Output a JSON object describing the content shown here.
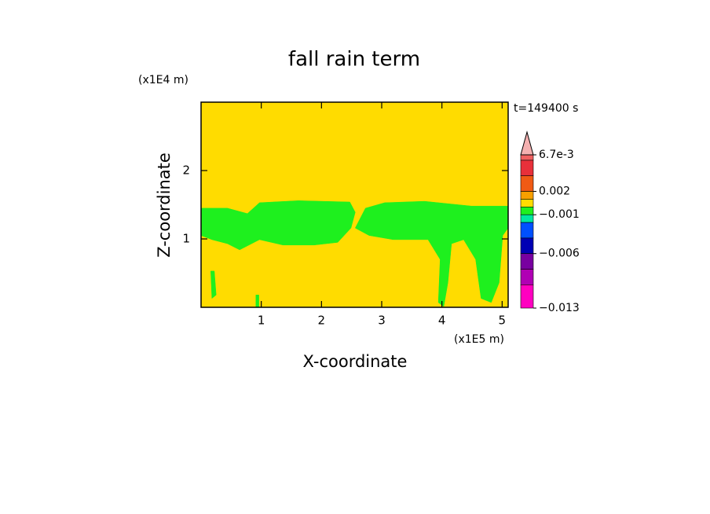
{
  "chart_data": {
    "type": "contour",
    "title": "fall rain term",
    "xlabel": "X-coordinate",
    "ylabel": "Z-coordinate",
    "xunit": "(x1E5 m)",
    "yunit": "(x1E4 m)",
    "time_label": "t=149400 s",
    "xlim": [
      0,
      5.1
    ],
    "ylim": [
      0,
      3
    ],
    "xticks": [
      1,
      2,
      3,
      4,
      5
    ],
    "yticks": [
      1,
      2
    ],
    "background_color": "#ffdc00",
    "regions": [
      {
        "color": "#1ef01e",
        "polygons": [
          {
            "x": [
              0,
              0.44,
              0.77,
              0.97,
              1.62,
              2.47,
              2.56,
              2.49,
              2.27,
              1.88,
              1.36,
              0.97,
              0.64,
              0.44,
              0.18,
              0
            ],
            "y": [
              1.45,
              1.45,
              1.37,
              1.53,
              1.56,
              1.54,
              1.39,
              1.16,
              0.95,
              0.91,
              0.91,
              0.99,
              0.84,
              0.93,
              0.99,
              1.05
            ]
          },
          {
            "x": [
              2.56,
              2.73,
              3.05,
              3.71,
              4.49,
              5.1,
              5.1,
              5.01,
              4.95,
              4.82,
              4.65,
              4.56,
              4.36,
              4.16,
              4.1,
              4.03,
              3.94,
              3.97,
              3.77,
              3.19,
              2.79
            ],
            "y": [
              1.16,
              1.45,
              1.53,
              1.55,
              1.48,
              1.48,
              1.16,
              1.05,
              0.36,
              0.07,
              0.13,
              0.7,
              0.99,
              0.93,
              0.36,
              0.01,
              0.07,
              0.7,
              0.99,
              0.99,
              1.05
            ]
          },
          {
            "x": [
              0.16,
              0.22,
              0.25,
              0.18
            ],
            "y": [
              0.53,
              0.53,
              0.18,
              0.13
            ]
          },
          {
            "x": [
              0.91,
              0.96,
              0.96,
              0.91
            ],
            "y": [
              0.18,
              0.18,
              0,
              0
            ]
          }
        ]
      }
    ],
    "colorbar": {
      "levels": [
        0.0067,
        0.006,
        0.004,
        0.002,
        0.001,
        0,
        -0.001,
        -0.002,
        -0.004,
        -0.006,
        -0.008,
        -0.01,
        -0.013
      ],
      "colors": [
        "#f06060",
        "#e8303a",
        "#f05a14",
        "#f8a000",
        "#ffdc00",
        "#1ef01e",
        "#00e8a0",
        "#0050ff",
        "#0000b4",
        "#7800a0",
        "#b000b4",
        "#ff00c0"
      ],
      "extend_color": "#f4b0b0",
      "ticks": [
        {
          "value": 0.0067,
          "label": "6.7e-3"
        },
        0.002,
        {
          "value": -0.001,
          "label": "−0.001"
        },
        {
          "value": -0.006,
          "label": "−0.006"
        },
        {
          "value": -0.013,
          "label": "−0.013"
        }
      ]
    }
  }
}
